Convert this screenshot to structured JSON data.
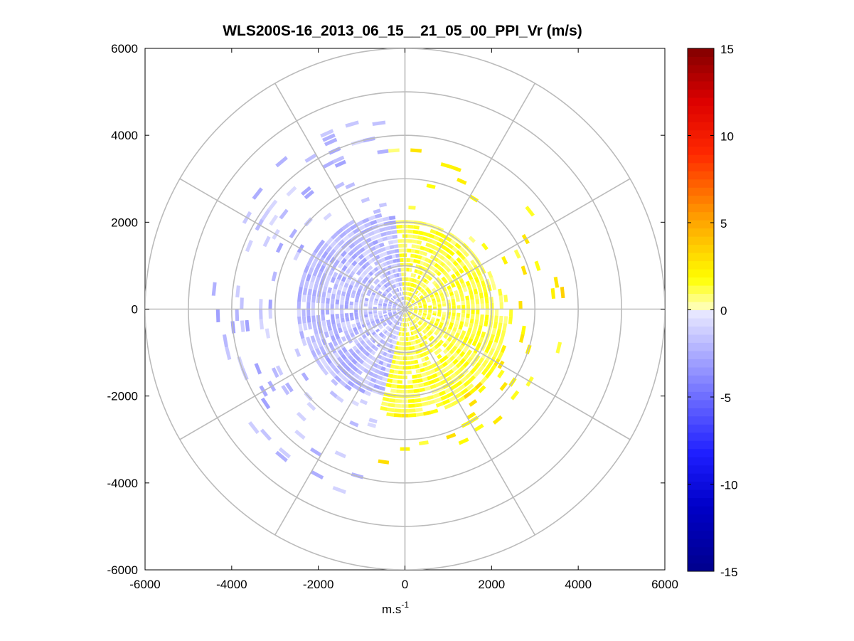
{
  "chart_data": {
    "type": "polar-ppi-scatter",
    "title": "WLS200S-16_2013_06_15__21_05_00_PPI_Vr (m/s)",
    "xlabel_base": "m.s",
    "xlabel_sup": "-1",
    "xlim": [
      -6000,
      6000
    ],
    "ylim": [
      -6000,
      6000
    ],
    "x_ticks": [
      "-6000",
      "-4000",
      "-2000",
      "0",
      "2000",
      "4000",
      "6000"
    ],
    "y_ticks": [
      "6000",
      "4000",
      "2000",
      "0",
      "-2000",
      "-4000",
      "-6000"
    ],
    "polar_grid": {
      "ring_radii": [
        1000,
        2000,
        3000,
        4000,
        5000,
        6000
      ],
      "spoke_step_deg": 30
    },
    "colorbar": {
      "limits": [
        -15,
        15
      ],
      "ticks": [
        "15",
        "10",
        "5",
        "0",
        "-5",
        "-10",
        "-15"
      ],
      "colormap": "blue-white-yellow-red"
    },
    "velocity_field": {
      "description_free": true,
      "negative_sector_deg": [
        95,
        255
      ],
      "positive_sector_deg": [
        -85,
        95
      ],
      "typical_negative": -1.8,
      "typical_positive": 1.2,
      "dense_radius_neg": 2400,
      "dense_radius_pos": 2400
    }
  }
}
